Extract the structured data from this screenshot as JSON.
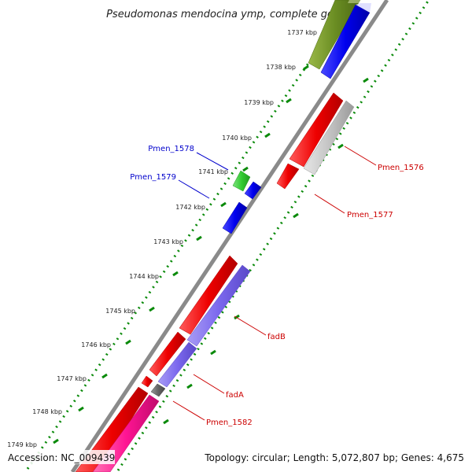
{
  "title": "Pseudomonas mendocina ymp, complete genome",
  "footer": {
    "accession": "Accession: NC_009439",
    "summary": "Topology: circular; Length: 5,072,807 bp; Genes: 4,675"
  },
  "kbp_ticks": [
    "1737 kbp",
    "1738 kbp",
    "1739 kbp",
    "1740 kbp",
    "1741 kbp",
    "1742 kbp",
    "1743 kbp",
    "1744 kbp",
    "1745 kbp",
    "1746 kbp",
    "1747 kbp",
    "1748 kbp",
    "1749 kbp"
  ],
  "gene_labels": [
    {
      "text": "Pmen_1578",
      "color": "#0000cc"
    },
    {
      "text": "Pmen_1579",
      "color": "#0000cc"
    },
    {
      "text": "Pmen_1576",
      "color": "#cc0000"
    },
    {
      "text": "Pmen_1577",
      "color": "#cc0000"
    },
    {
      "text": "fadB",
      "color": "#cc0000"
    },
    {
      "text": "fadA",
      "color": "#cc0000"
    },
    {
      "text": "Pmen_1582",
      "color": "#cc0000"
    }
  ],
  "colors": {
    "backbone": "#8a8a8a",
    "tick_green": "#0a8a0a",
    "red": "#ee0000",
    "blue": "#0000ee",
    "green": "#33cc33",
    "olive": "#6b8e23",
    "violet": "#7b68ee",
    "gray": "#bdbdbd",
    "magenta": "#ff1493",
    "darkgray": "#666666"
  }
}
